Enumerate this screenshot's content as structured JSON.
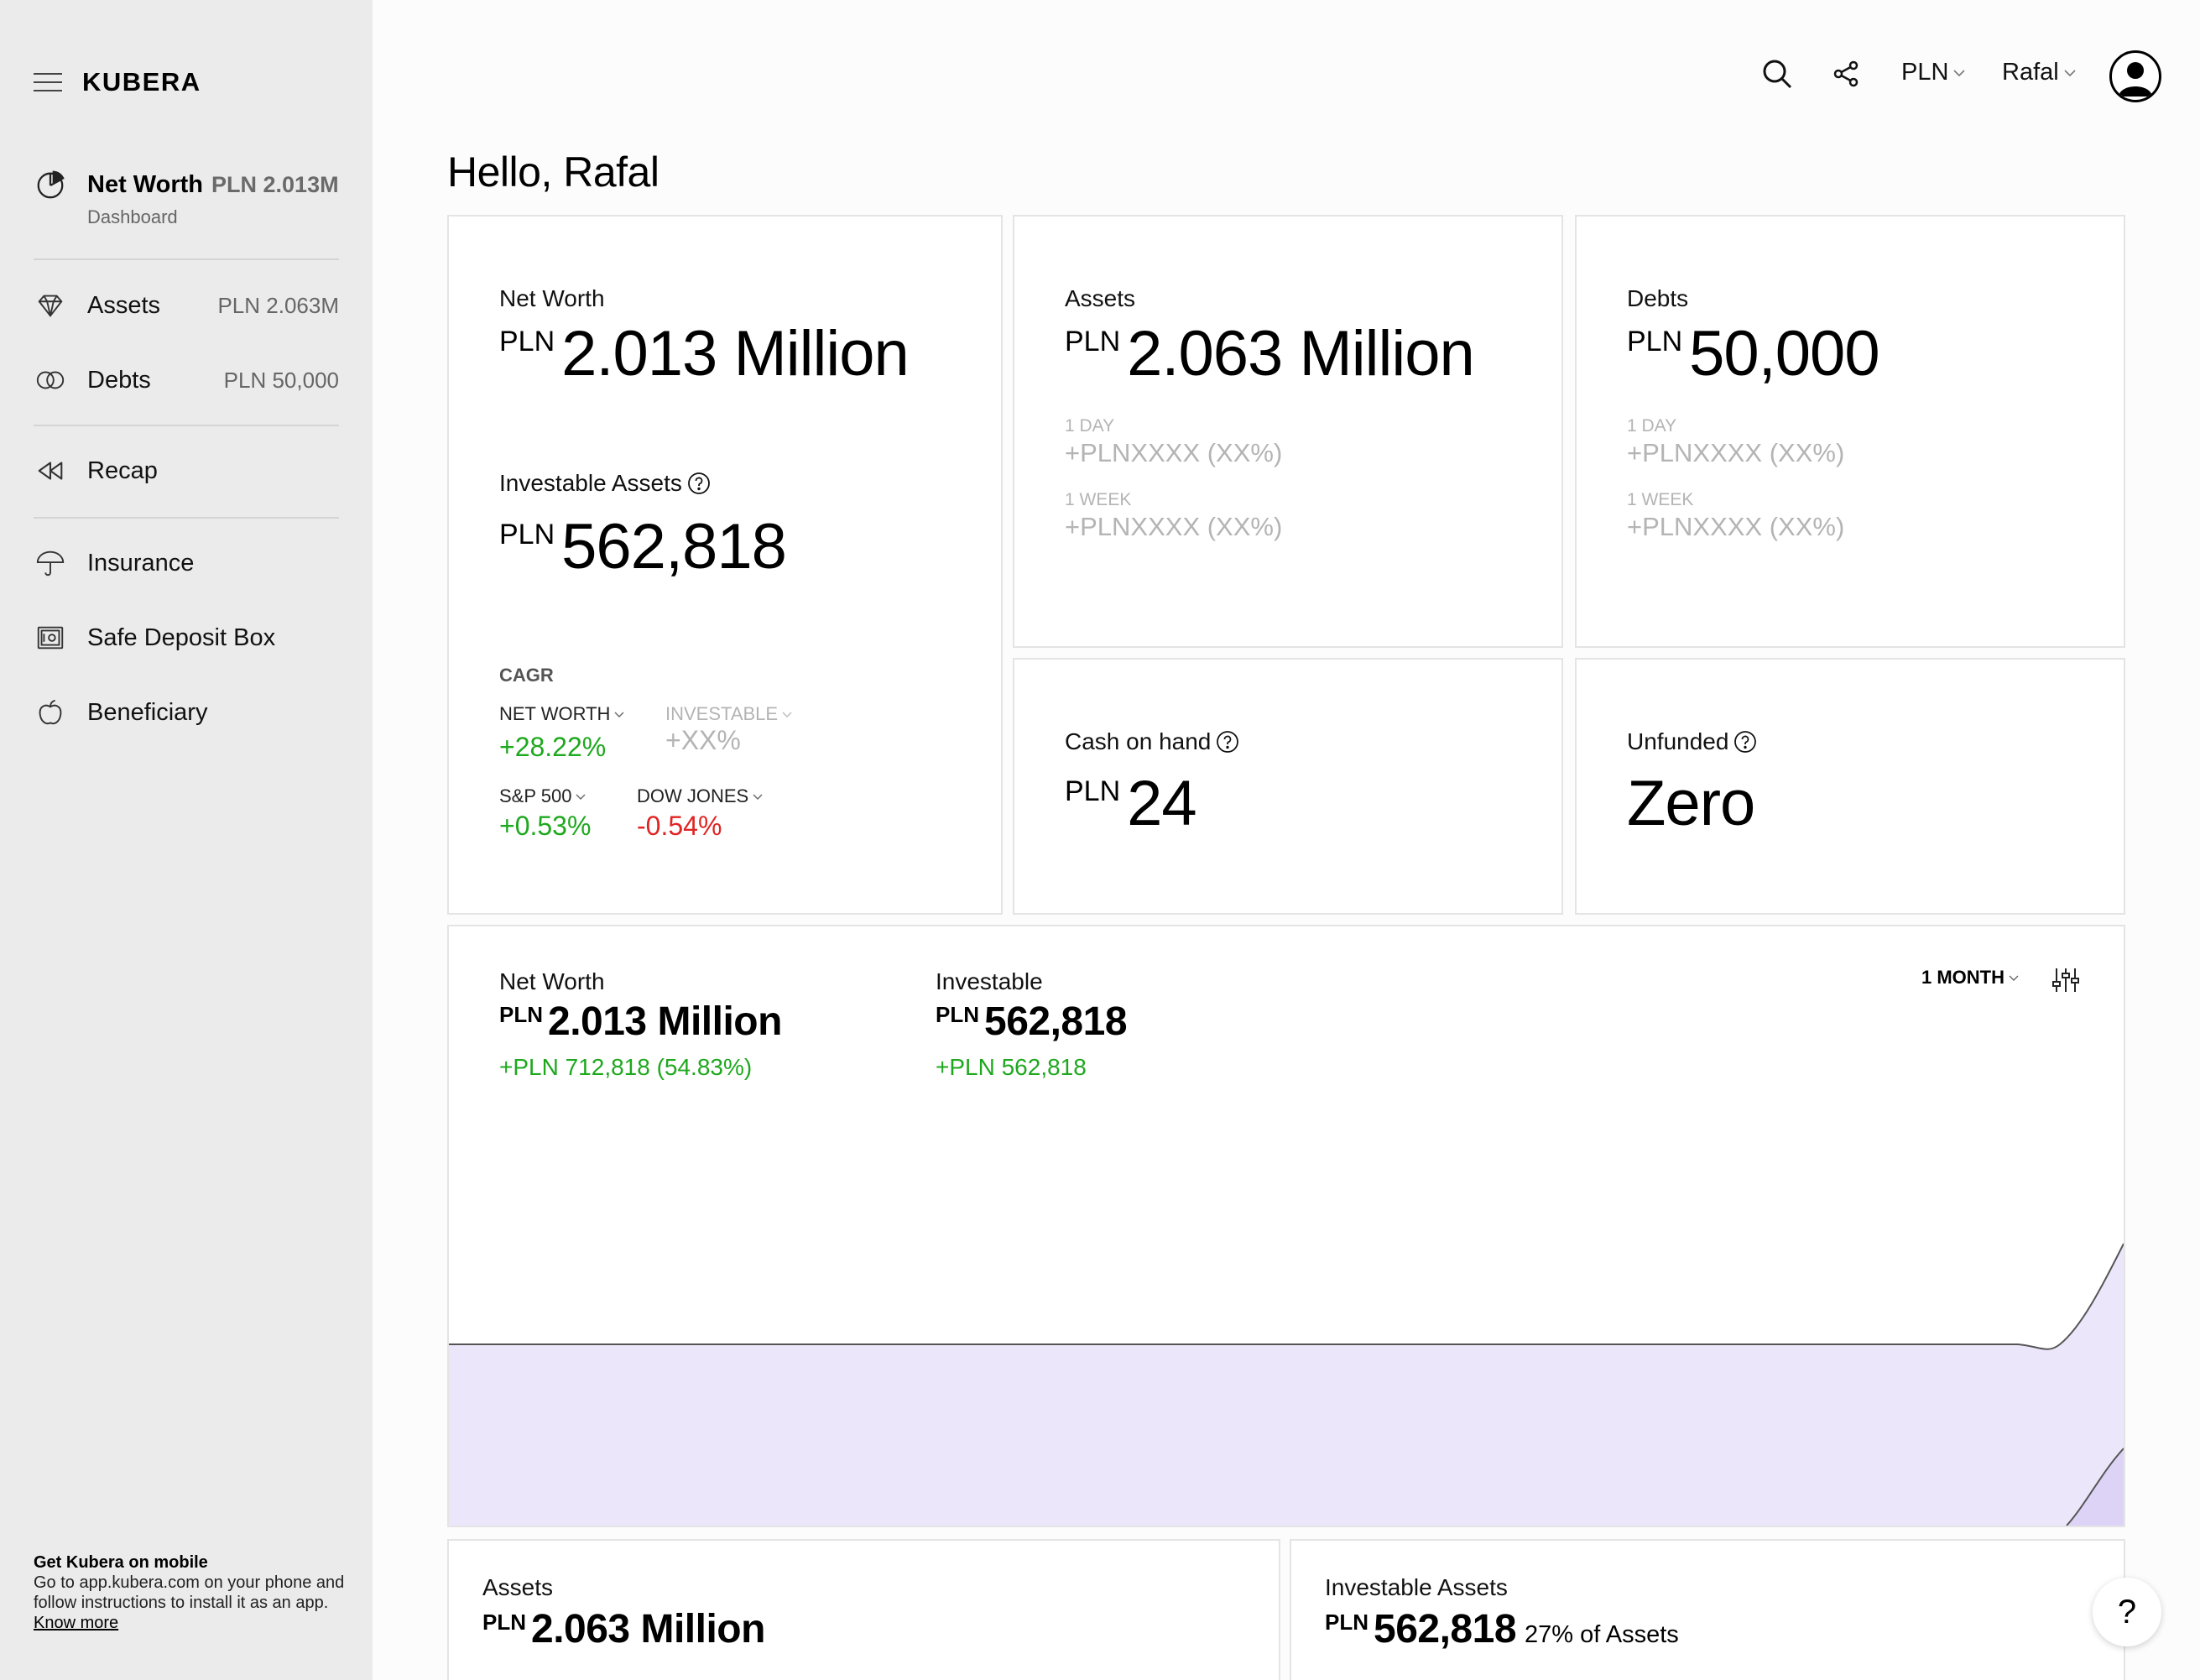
{
  "app": {
    "brand": "KUBERA"
  },
  "sidebar": {
    "net_worth": {
      "label": "Net Worth",
      "value": "PLN 2.013M",
      "sub": "Dashboard"
    },
    "items": [
      {
        "label": "Assets",
        "value": "PLN 2.063M",
        "icon": "diamond-icon"
      },
      {
        "label": "Debts",
        "value": "PLN 50,000",
        "icon": "rings-icon"
      },
      {
        "label": "Recap",
        "icon": "rewind-icon"
      },
      {
        "label": "Insurance",
        "icon": "umbrella-icon"
      },
      {
        "label": "Safe Deposit Box",
        "icon": "safe-icon"
      },
      {
        "label": "Beneficiary",
        "icon": "apple-icon"
      }
    ],
    "mobile": {
      "title": "Get Kubera on mobile",
      "text": "Go to app.kubera.com on your phone and follow instructions to install it as an app.",
      "link": "Know more"
    }
  },
  "header": {
    "currency": "PLN",
    "user": "Rafal"
  },
  "greeting": "Hello, Rafal",
  "cards": {
    "net_worth": {
      "label": "Net Worth",
      "currency": "PLN",
      "value": "2.013 Million",
      "investable_label": "Investable Assets",
      "investable_currency": "PLN",
      "investable_value": "562,818",
      "cagr": {
        "title": "CAGR",
        "net_worth_label": "NET WORTH",
        "net_worth_value": "+28.22%",
        "investable_label": "INVESTABLE",
        "investable_value": "+XX%",
        "sp500_label": "S&P 500",
        "sp500_value": "+0.53%",
        "dow_label": "DOW JONES",
        "dow_value": "-0.54%"
      }
    },
    "assets": {
      "label": "Assets",
      "currency": "PLN",
      "value": "2.063 Million",
      "day_label": "1 DAY",
      "day_value": "+PLNXXXX (XX%)",
      "week_label": "1 WEEK",
      "week_value": "+PLNXXXX (XX%)"
    },
    "debts": {
      "label": "Debts",
      "currency": "PLN",
      "value": "50,000",
      "day_label": "1 DAY",
      "day_value": "+PLNXXXX (XX%)",
      "week_label": "1 WEEK",
      "week_value": "+PLNXXXX (XX%)"
    },
    "cash": {
      "label": "Cash on hand",
      "currency": "PLN",
      "value": "24"
    },
    "unfunded": {
      "label": "Unfunded",
      "value": "Zero"
    },
    "chart": {
      "nw_label": "Net Worth",
      "nw_currency": "PLN",
      "nw_value": "2.013 Million",
      "nw_change": "+PLN 712,818 (54.83%)",
      "inv_label": "Investable",
      "inv_currency": "PLN",
      "inv_value": "562,818",
      "inv_change": "+PLN 562,818",
      "range": "1 MONTH"
    },
    "assets_bottom": {
      "label": "Assets",
      "currency": "PLN",
      "value": "2.063 Million"
    },
    "investable_bottom": {
      "label": "Investable Assets",
      "currency": "PLN",
      "value": "562,818",
      "tail": "27% of Assets"
    }
  },
  "help_fab": "?",
  "colors": {
    "positive": "#1ea81e",
    "negative": "#e02424",
    "chart_fill": "#ece6fb",
    "chart_fill_dark": "#ddd3f7"
  }
}
